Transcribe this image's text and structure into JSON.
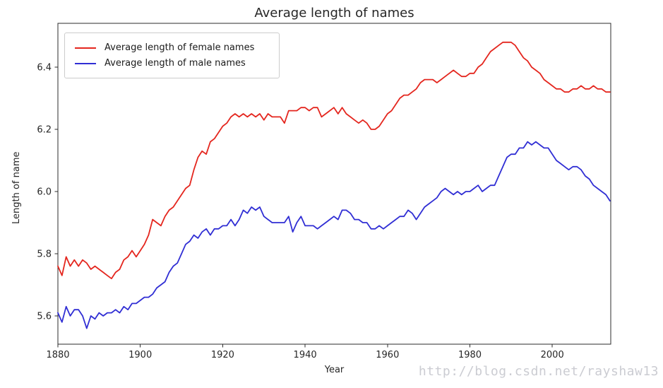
{
  "title": "Average length of names",
  "watermark": "http://blog.csdn.net/rayshaw13",
  "axis_color": "#2b2b2b",
  "text_color": "#262626",
  "chart_data": {
    "type": "line",
    "title": "Average length of names",
    "xlabel": "Year",
    "ylabel": "Length of name",
    "xlim": [
      1880,
      2014.2
    ],
    "ylim": [
      5.51,
      6.54
    ],
    "xticks": [
      1880,
      1900,
      1920,
      1940,
      1960,
      1980,
      2000
    ],
    "xtick_labels": [
      "1880",
      "1900",
      "1920",
      "1940",
      "1960",
      "1980",
      "2000"
    ],
    "yticks": [
      5.6,
      5.8,
      6.0,
      6.2,
      6.4
    ],
    "ytick_labels": [
      "5.6",
      "5.8",
      "6.0",
      "6.2",
      "6.4"
    ],
    "grid": false,
    "legend_position": "upper left",
    "x_start": 1880,
    "x_step": 1,
    "series": [
      {
        "name": "Average length of female names",
        "color": "#e4261e",
        "values": [
          5.76,
          5.73,
          5.79,
          5.76,
          5.78,
          5.76,
          5.78,
          5.77,
          5.75,
          5.76,
          5.75,
          5.74,
          5.73,
          5.72,
          5.74,
          5.75,
          5.78,
          5.79,
          5.81,
          5.79,
          5.81,
          5.83,
          5.86,
          5.91,
          5.9,
          5.89,
          5.92,
          5.94,
          5.95,
          5.97,
          5.99,
          6.01,
          6.02,
          6.07,
          6.11,
          6.13,
          6.12,
          6.16,
          6.17,
          6.19,
          6.21,
          6.22,
          6.24,
          6.25,
          6.24,
          6.25,
          6.24,
          6.25,
          6.24,
          6.25,
          6.23,
          6.25,
          6.24,
          6.24,
          6.24,
          6.22,
          6.26,
          6.26,
          6.26,
          6.27,
          6.27,
          6.26,
          6.27,
          6.27,
          6.24,
          6.25,
          6.26,
          6.27,
          6.25,
          6.27,
          6.25,
          6.24,
          6.23,
          6.22,
          6.23,
          6.22,
          6.2,
          6.2,
          6.21,
          6.23,
          6.25,
          6.26,
          6.28,
          6.3,
          6.31,
          6.31,
          6.32,
          6.33,
          6.35,
          6.36,
          6.36,
          6.36,
          6.35,
          6.36,
          6.37,
          6.38,
          6.39,
          6.38,
          6.37,
          6.37,
          6.38,
          6.38,
          6.4,
          6.41,
          6.43,
          6.45,
          6.46,
          6.47,
          6.48,
          6.48,
          6.48,
          6.47,
          6.45,
          6.43,
          6.42,
          6.4,
          6.39,
          6.38,
          6.36,
          6.35,
          6.34,
          6.33,
          6.33,
          6.32,
          6.32,
          6.33,
          6.33,
          6.34,
          6.33,
          6.33,
          6.34,
          6.33,
          6.33,
          6.32,
          6.32
        ]
      },
      {
        "name": "Average length of male names",
        "color": "#302ed4",
        "values": [
          5.61,
          5.58,
          5.63,
          5.6,
          5.62,
          5.62,
          5.6,
          5.56,
          5.6,
          5.59,
          5.61,
          5.6,
          5.61,
          5.61,
          5.62,
          5.61,
          5.63,
          5.62,
          5.64,
          5.64,
          5.65,
          5.66,
          5.66,
          5.67,
          5.69,
          5.7,
          5.71,
          5.74,
          5.76,
          5.77,
          5.8,
          5.83,
          5.84,
          5.86,
          5.85,
          5.87,
          5.88,
          5.86,
          5.88,
          5.88,
          5.89,
          5.89,
          5.91,
          5.89,
          5.91,
          5.94,
          5.93,
          5.95,
          5.94,
          5.95,
          5.92,
          5.91,
          5.9,
          5.9,
          5.9,
          5.9,
          5.92,
          5.87,
          5.9,
          5.92,
          5.89,
          5.89,
          5.89,
          5.88,
          5.89,
          5.9,
          5.91,
          5.92,
          5.91,
          5.94,
          5.94,
          5.93,
          5.91,
          5.91,
          5.9,
          5.9,
          5.88,
          5.88,
          5.89,
          5.88,
          5.89,
          5.9,
          5.91,
          5.92,
          5.92,
          5.94,
          5.93,
          5.91,
          5.93,
          5.95,
          5.96,
          5.97,
          5.98,
          6.0,
          6.01,
          6.0,
          5.99,
          6.0,
          5.99,
          6.0,
          6.0,
          6.01,
          6.02,
          6.0,
          6.01,
          6.02,
          6.02,
          6.05,
          6.08,
          6.11,
          6.12,
          6.12,
          6.14,
          6.14,
          6.16,
          6.15,
          6.16,
          6.15,
          6.14,
          6.14,
          6.12,
          6.1,
          6.09,
          6.08,
          6.07,
          6.08,
          6.08,
          6.07,
          6.05,
          6.04,
          6.02,
          6.01,
          6.0,
          5.99,
          5.97
        ]
      }
    ]
  }
}
